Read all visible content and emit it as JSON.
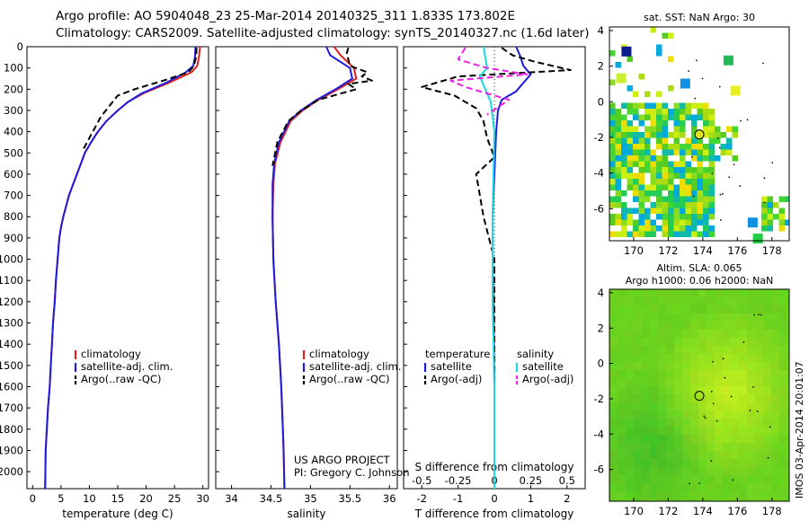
{
  "header": {
    "line1": "Argo profile: AO 5904048_23 25-Mar-2014 20140325_311 1.833S 173.802E",
    "line2": "Climatology: CARS2009. Satellite-adjusted climatology: synTS_20140327.nc (1.6d later)"
  },
  "credit": {
    "line1": "US ARGO PROJECT",
    "line2": "PI: Gregory C. Johnson"
  },
  "imos_stamp": "IMOS 03-Apr-2014 20:01:07",
  "colors": {
    "climatology": "#e0201c",
    "satellite": "#1c1ce0",
    "argo": "#000000",
    "sal_satellite": "#18d8e0",
    "sal_argo": "#f020e0"
  },
  "chart_data": [
    {
      "type": "line",
      "id": "temperature",
      "xlabel": "temperature (deg C)",
      "xlim": [
        -1,
        31
      ],
      "xticks": [
        "0",
        "5",
        "10",
        "15",
        "20",
        "25",
        "30"
      ],
      "ylim": [
        2080,
        0
      ],
      "yticks": [
        "0",
        "100",
        "200",
        "300",
        "400",
        "500",
        "600",
        "700",
        "800",
        "900",
        "1000",
        "1100",
        "1200",
        "1300",
        "1400",
        "1500",
        "1600",
        "1700",
        "1800",
        "1900",
        "2000"
      ],
      "legend": [
        "climatology",
        "satellite-adj. clim.",
        "Argo(..raw -QC)"
      ],
      "series": [
        {
          "name": "climatology",
          "color": "#e0201c",
          "x": [
            29.5,
            29.3,
            29.0,
            28.0,
            24.0,
            19.5,
            16.8,
            15.0,
            13.0,
            11.5,
            10.3,
            9.2,
            8.5,
            7.8,
            7.1,
            6.4,
            5.9,
            5.4,
            5.0,
            4.7,
            4.4,
            4.1,
            3.9,
            3.6,
            3.4,
            3.2,
            3.0,
            2.7,
            2.5,
            2.3,
            2.2
          ],
          "depth": [
            0,
            50,
            90,
            120,
            170,
            220,
            260,
            300,
            350,
            400,
            450,
            500,
            550,
            600,
            650,
            700,
            750,
            800,
            850,
            900,
            1000,
            1100,
            1200,
            1300,
            1400,
            1500,
            1600,
            1700,
            1800,
            1900,
            2080
          ]
        },
        {
          "name": "satellite-adj. clim.",
          "color": "#1c1ce0",
          "x": [
            28.7,
            28.6,
            28.3,
            27.0,
            23.5,
            19.2,
            16.8,
            15.0,
            13.0,
            11.5,
            10.3,
            9.2,
            8.5,
            7.8,
            7.1,
            6.4,
            5.9,
            5.4,
            5.0,
            4.7,
            4.4,
            4.1,
            3.9,
            3.6,
            3.4,
            3.2,
            3.0,
            2.7,
            2.5,
            2.3,
            2.2
          ],
          "depth": [
            0,
            50,
            90,
            120,
            170,
            220,
            260,
            300,
            350,
            400,
            450,
            500,
            550,
            600,
            650,
            700,
            750,
            800,
            850,
            900,
            1000,
            1100,
            1200,
            1300,
            1400,
            1500,
            1600,
            1700,
            1800,
            1900,
            2080
          ]
        },
        {
          "name": "Argo(..raw -QC)",
          "color": "#000000",
          "dashed": true,
          "x": [
            28.9,
            28.8,
            28.4,
            27.5,
            23.0,
            18.0,
            15.0,
            13.5,
            12.0,
            11.0,
            10.0,
            9.0
          ],
          "depth": [
            5,
            50,
            90,
            120,
            160,
            200,
            230,
            280,
            330,
            380,
            430,
            480
          ]
        }
      ]
    },
    {
      "type": "line",
      "id": "salinity",
      "xlabel": "salinity",
      "xlim": [
        33.8,
        36.1
      ],
      "xticks": [
        "34",
        "34.5",
        "35",
        "35.5",
        "36"
      ],
      "ylim": [
        2080,
        0
      ],
      "legend": [
        "climatology",
        "satellite-adj. clim.",
        "Argo(..raw -QC)"
      ],
      "series": [
        {
          "name": "climatology",
          "color": "#e0201c",
          "x": [
            35.3,
            35.38,
            35.55,
            35.58,
            35.35,
            35.1,
            34.9,
            34.75,
            34.62,
            34.55,
            34.53,
            34.52,
            34.53,
            34.56,
            34.6,
            34.63,
            34.65,
            34.66,
            34.67
          ],
          "depth": [
            0,
            40,
            100,
            150,
            200,
            250,
            300,
            350,
            450,
            550,
            650,
            800,
            1000,
            1200,
            1400,
            1600,
            1800,
            1900,
            2080
          ]
        },
        {
          "name": "satellite-adj. clim.",
          "color": "#1c1ce0",
          "x": [
            35.2,
            35.25,
            35.5,
            35.53,
            35.32,
            35.08,
            34.88,
            34.73,
            34.6,
            34.54,
            34.52,
            34.52,
            34.53,
            34.56,
            34.6,
            34.63,
            34.65,
            34.66,
            34.67
          ],
          "depth": [
            0,
            40,
            100,
            150,
            200,
            250,
            300,
            350,
            450,
            550,
            650,
            800,
            1000,
            1200,
            1400,
            1600,
            1800,
            1900,
            2080
          ]
        },
        {
          "name": "Argo(..raw -QC)",
          "color": "#000000",
          "dashed": true,
          "x": [
            35.48,
            35.46,
            35.48,
            35.5,
            35.72,
            35.65,
            35.78,
            35.48,
            35.58,
            35.1,
            34.88,
            34.72,
            34.58,
            34.52
          ],
          "depth": [
            5,
            30,
            60,
            90,
            120,
            140,
            160,
            175,
            200,
            250,
            300,
            350,
            450,
            560
          ]
        }
      ]
    },
    {
      "type": "line",
      "id": "difference",
      "xlabel": "T difference from climatology",
      "xlim": [
        -2.5,
        2.5
      ],
      "xticks": [
        "-2",
        "-1",
        "0",
        "1",
        "2"
      ],
      "x2label": "S difference from climatology",
      "x2ticks": [
        "-0.5",
        "-0.25",
        "0",
        "0.25",
        "0.5"
      ],
      "ylim": [
        2080,
        0
      ],
      "legend": [
        "temperature",
        "satellite",
        "Argo(-adj)",
        "salinity",
        "satellite",
        "Argo(-adj)"
      ],
      "series": [
        {
          "name": "satellite",
          "color": "#1c1ce0",
          "x": [
            0.6,
            0.7,
            0.8,
            1.0,
            0.8,
            0.6,
            0.2,
            0.1,
            0.05,
            0,
            -0.05,
            -0.05,
            -0.02,
            0,
            0,
            0
          ],
          "depth": [
            0,
            40,
            90,
            130,
            170,
            210,
            250,
            300,
            400,
            600,
            800,
            1000,
            1300,
            1600,
            1900,
            2080
          ]
        },
        {
          "name": "Argo(-adj)",
          "color": "#000000",
          "dashed": true,
          "x": [
            0.2,
            0.5,
            1.1,
            2.1,
            -1.0,
            -2.0,
            -1.1,
            -0.5,
            -0.3,
            -0.2,
            0,
            -0.5,
            -0.3,
            0,
            0,
            0
          ],
          "depth": [
            5,
            40,
            70,
            110,
            140,
            190,
            230,
            290,
            350,
            430,
            520,
            600,
            800,
            1000,
            1300,
            1600
          ]
        },
        {
          "name": "salinity satellite",
          "color": "#18d8e0",
          "x": [
            -0.3,
            -0.2,
            -0.4,
            -0.3,
            -0.1,
            0,
            -0.05,
            -0.05,
            0,
            0
          ],
          "depth": [
            0,
            100,
            140,
            180,
            260,
            400,
            800,
            1200,
            1600,
            2080
          ]
        },
        {
          "name": "salinity Argo(-adj)",
          "color": "#f020e0",
          "dashed": true,
          "x": [
            -0.8,
            -1.0,
            -0.2,
            0.9,
            -1.2,
            -0.8,
            0.4,
            -0.2
          ],
          "depth": [
            5,
            60,
            100,
            130,
            160,
            190,
            250,
            320
          ]
        }
      ]
    },
    {
      "type": "heatmap",
      "id": "sst-map",
      "title": "sat. SST: NaN Argo: 30",
      "xlim": [
        168.6,
        179
      ],
      "xticks": [
        "170",
        "172",
        "174",
        "176",
        "178"
      ],
      "ylim": [
        -7.8,
        4.2
      ],
      "yticks": [
        "4",
        "2",
        "0",
        "-2",
        "-4",
        "-6"
      ],
      "argo_position": {
        "lon": 173.802,
        "lat": -1.833
      }
    },
    {
      "type": "heatmap",
      "id": "sla-map",
      "title": "Altim. SLA: 0.065",
      "subtitle": "Argo h1000: 0.06 h2000: NaN",
      "xlim": [
        168.6,
        179
      ],
      "xticks": [
        "170",
        "172",
        "174",
        "176",
        "178"
      ],
      "ylim": [
        -7.8,
        4.2
      ],
      "yticks": [
        "4",
        "2",
        "0",
        "-2",
        "-4",
        "-6"
      ],
      "argo_position": {
        "lon": 173.802,
        "lat": -1.833
      }
    }
  ]
}
